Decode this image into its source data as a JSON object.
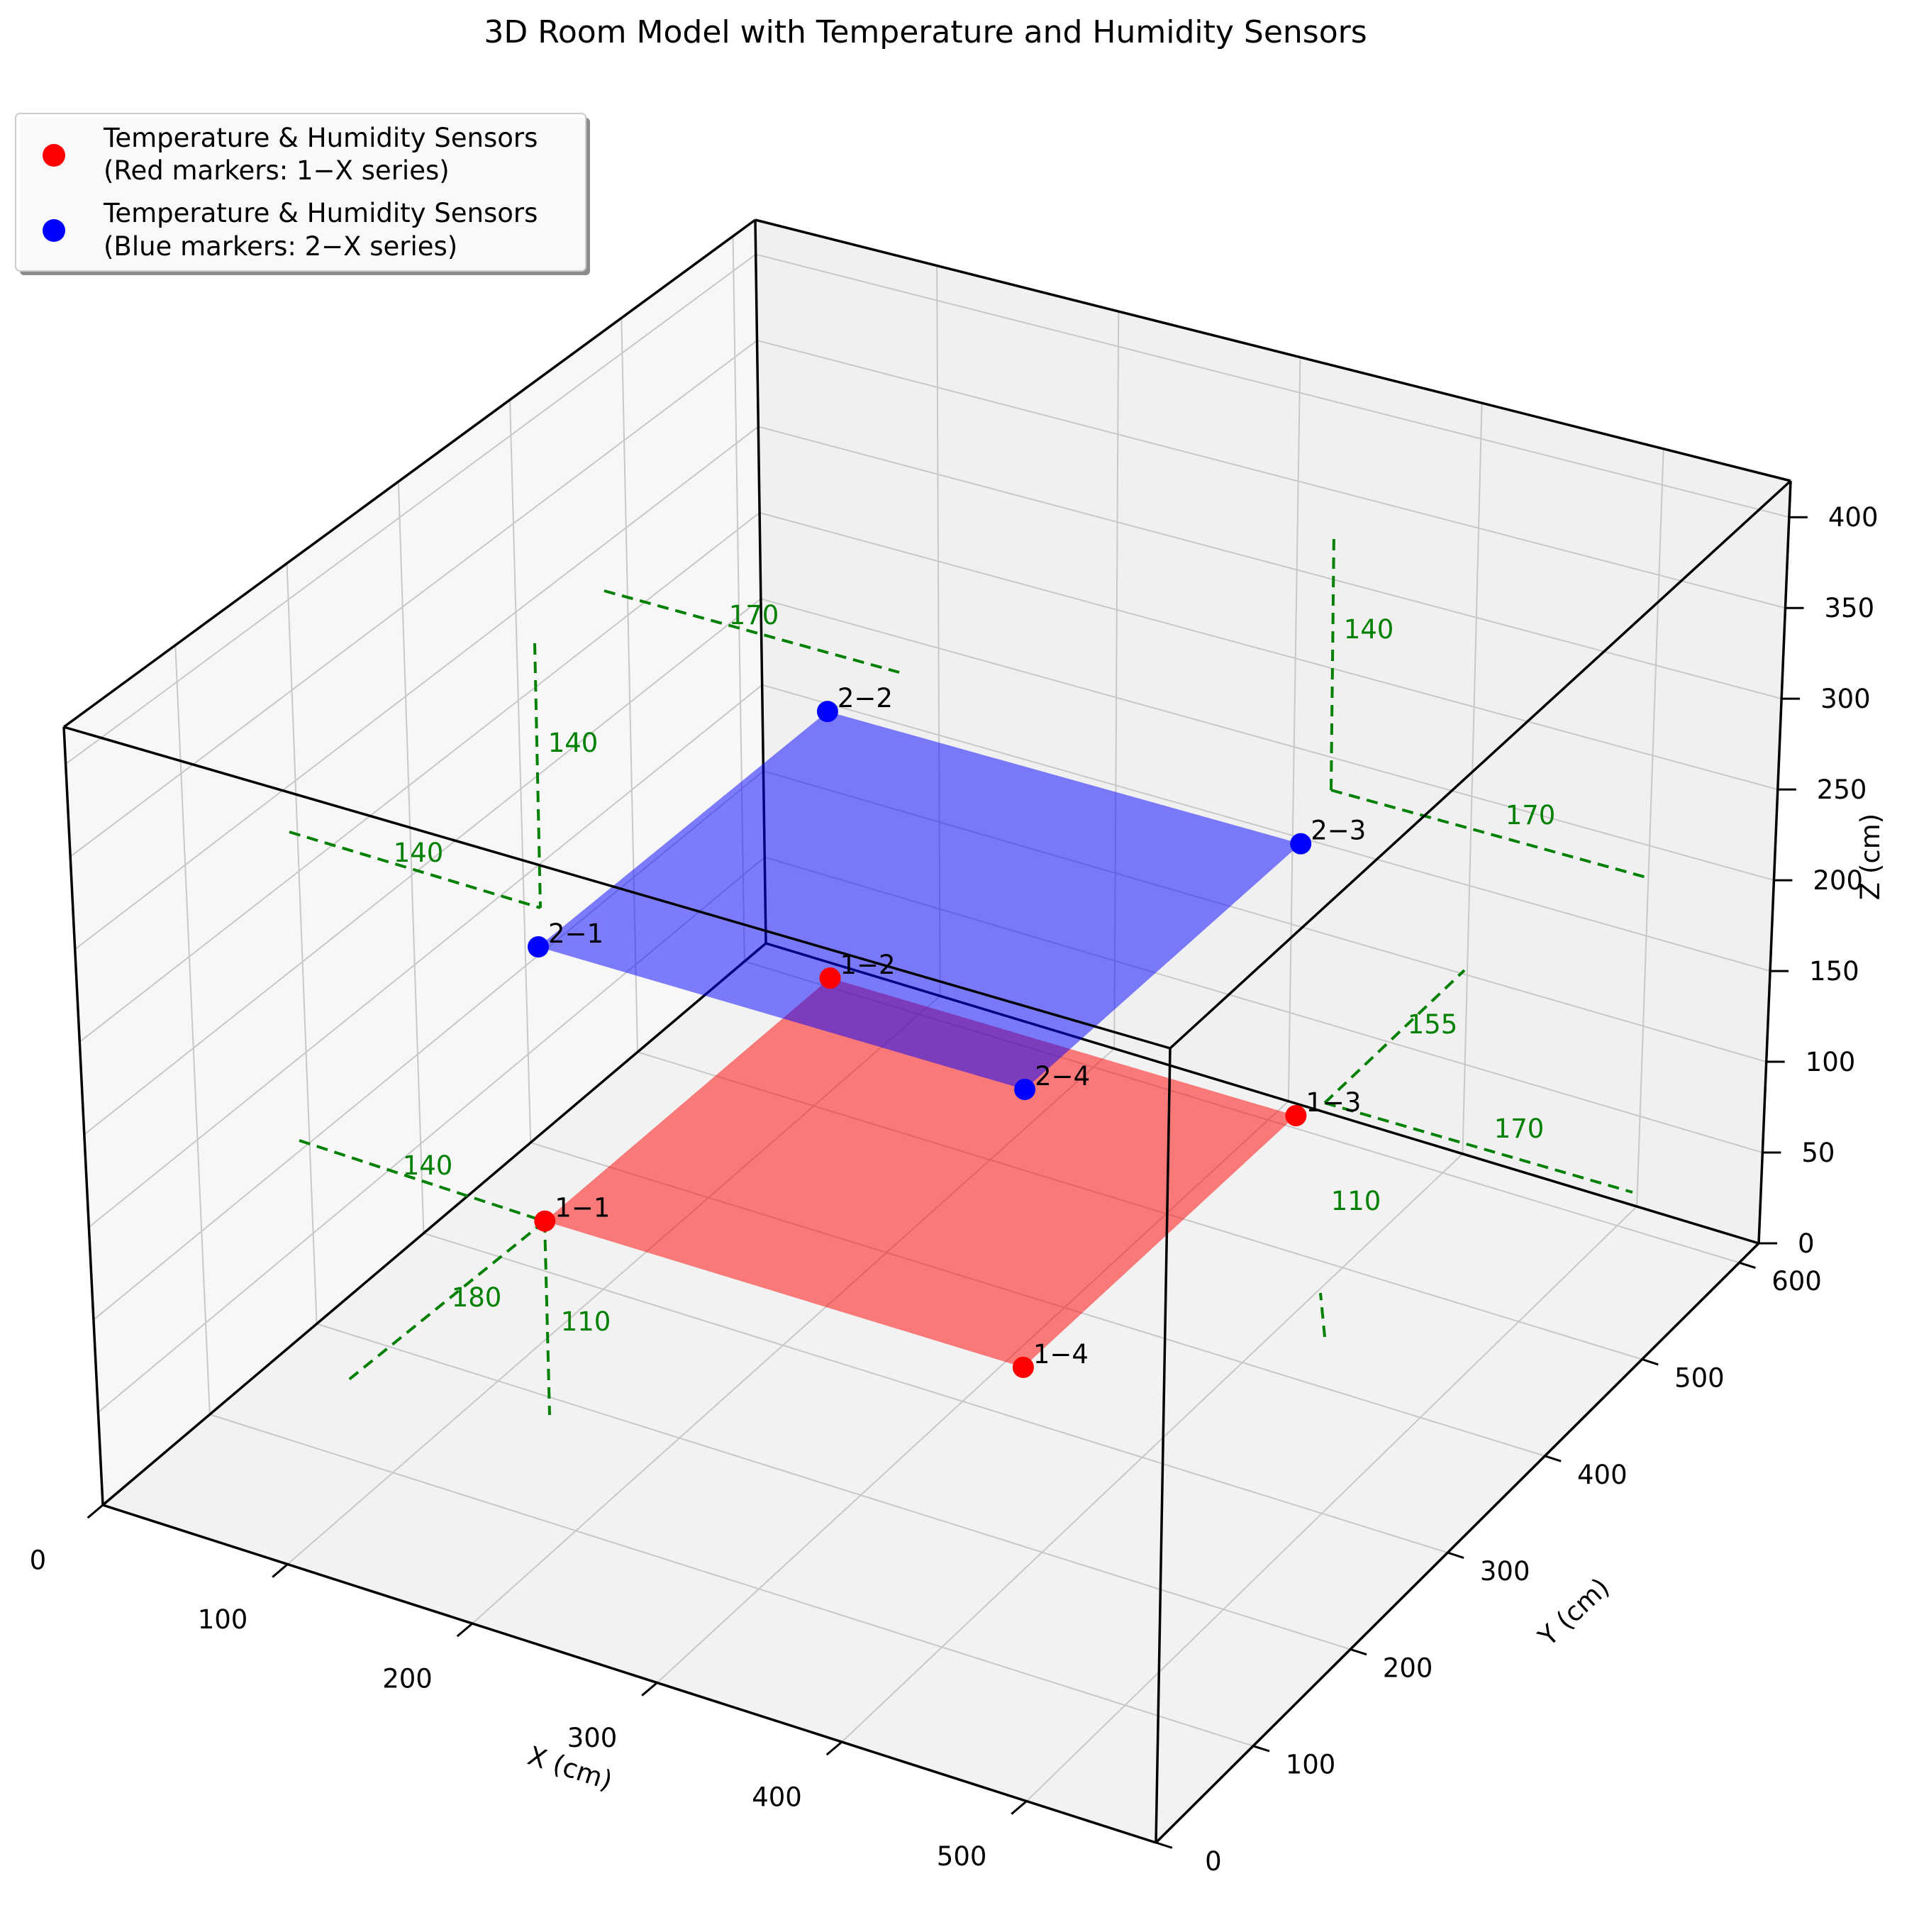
{
  "chart_data": {
    "type": "scatter",
    "title": "3D Room Model with Temperature and Humidity Sensors",
    "xlabel": "X (cm)",
    "ylabel": "Y (cm)",
    "zlabel": "Z (cm)",
    "xlim": [
      0,
      570
    ],
    "ylim": [
      0,
      620
    ],
    "zlim": [
      0,
      420
    ],
    "x_ticks": [
      "0",
      "100",
      "200",
      "300",
      "400",
      "500"
    ],
    "y_ticks": [
      "0",
      "100",
      "200",
      "300",
      "400",
      "500",
      "600"
    ],
    "z_ticks": [
      "0",
      "50",
      "100",
      "150",
      "200",
      "250",
      "300",
      "350",
      "400"
    ],
    "grid": true,
    "legend_position": "top-left",
    "legend": [
      {
        "line1": "Temperature & Humidity Sensors",
        "line2": "(Red markers: 1−X series)",
        "color": "#ff0000"
      },
      {
        "line1": "Temperature & Humidity Sensors",
        "line2": "(Blue markers: 2−X series)",
        "color": "#0000ff"
      }
    ],
    "series": [
      {
        "color": "#ff0000",
        "plane_color": "#ff0000",
        "points": [
          {
            "label": "1−1",
            "x": 140,
            "y": 180,
            "z": 110
          },
          {
            "label": "1−2",
            "x": 140,
            "y": 450,
            "z": 110
          },
          {
            "label": "1−3",
            "x": 400,
            "y": 450,
            "z": 110
          },
          {
            "label": "1−4",
            "x": 400,
            "y": 180,
            "z": 110
          }
        ]
      },
      {
        "color": "#0000ff",
        "plane_color": "#0000ff",
        "points": [
          {
            "label": "2−1",
            "x": 140,
            "y": 180,
            "z": 260
          },
          {
            "label": "2−2",
            "x": 140,
            "y": 450,
            "z": 260
          },
          {
            "label": "2−3",
            "x": 400,
            "y": 450,
            "z": 260
          },
          {
            "label": "2−4",
            "x": 400,
            "y": 180,
            "z": 260
          }
        ]
      }
    ],
    "dimension_annotations": [
      "140",
      "180",
      "110",
      "155",
      "170",
      "110",
      "140",
      "140",
      "170",
      "140",
      "170"
    ]
  }
}
